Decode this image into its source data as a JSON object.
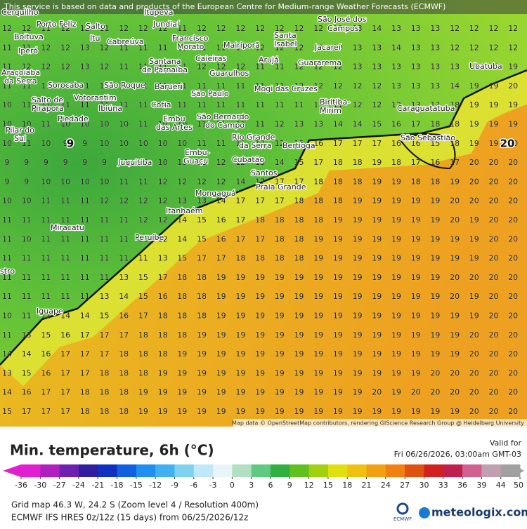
{
  "map": {
    "banner": "This service is based on data and products of the European Centre for Medium-range Weather Forecasts (ECMWF)",
    "attribution": "Map data © OpenStreetMap contributors, rendering GIScience Research Group @ Heidelberg University",
    "contour_labels": [
      "9",
      "20"
    ],
    "places": [
      "Cerquilho",
      "Itupeva",
      "Porto Feliz",
      "Salto",
      "Jundiaí",
      "São José dos",
      "Campos",
      "Boituva",
      "Itu",
      "Cabreúva",
      "Francisco",
      "Morato",
      "Mairiporã",
      "Santa",
      "Isabel",
      "Jacareí",
      "Iperó",
      "Caieiras",
      "Arujá",
      "Guararema",
      "Ubatuba",
      "Araçoiaba",
      "da Serra",
      "Santana",
      "de Parnaíba",
      "Guarulhos",
      "Sorocaba",
      "São Roque",
      "Barueri",
      "Mogi das Cruzes",
      "São Paulo",
      "Salto de",
      "Pirapora",
      "Votorantim",
      "Ibiúna",
      "Cotia",
      "Embu",
      "das Artes",
      "São Bernardo",
      "do Campo",
      "Biritiba-",
      "Mirim",
      "Caraguatatuba",
      "Piedade",
      "Pilar do",
      "Sul",
      "Rio Grande",
      "da Serra",
      "Bertioga",
      "São Sebastião",
      "Embu-",
      "Guaçu",
      "Juquitiba",
      "Cubatão",
      "Santos",
      "Praia Grande",
      "Mongaguá",
      "Itanhaém",
      "Miracatu",
      "Peruíbe",
      "stro",
      "Iguape"
    ],
    "grid": [
      [
        12,
        12,
        11,
        12,
        12,
        11,
        12,
        12,
        12,
        11,
        12,
        12,
        12,
        12,
        12,
        12,
        12,
        12,
        13,
        14,
        13,
        13,
        13,
        12,
        12,
        12,
        12
      ],
      [
        11,
        11,
        12,
        12,
        13,
        12,
        11,
        11,
        11,
        11,
        11,
        11,
        11,
        12,
        12,
        12,
        12,
        12,
        13,
        13,
        14,
        13,
        13,
        12,
        12,
        12,
        12
      ],
      [
        11,
        12,
        12,
        12,
        13,
        12,
        11,
        11,
        11,
        11,
        12,
        12,
        12,
        11,
        11,
        12,
        12,
        12,
        13,
        13,
        13,
        13,
        13,
        13,
        13,
        13,
        19
      ],
      [
        11,
        11,
        11,
        11,
        11,
        11,
        11,
        11,
        11,
        11,
        11,
        11,
        11,
        11,
        11,
        12,
        12,
        12,
        12,
        12,
        13,
        13,
        13,
        14,
        19,
        19,
        20
      ],
      [
        10,
        11,
        11,
        11,
        11,
        11,
        11,
        11,
        10,
        11,
        11,
        11,
        11,
        11,
        11,
        11,
        11,
        11,
        12,
        12,
        12,
        13,
        13,
        18,
        19,
        19,
        19
      ],
      [
        10,
        10,
        11,
        10,
        10,
        10,
        10,
        11,
        10,
        10,
        11,
        11,
        11,
        11,
        12,
        13,
        13,
        14,
        14,
        15,
        16,
        17,
        18,
        18,
        19,
        19,
        19
      ],
      [
        10,
        11,
        10,
        9,
        9,
        10,
        10,
        10,
        10,
        10,
        11,
        11,
        11,
        12,
        12,
        15,
        16,
        17,
        17,
        17,
        16,
        16,
        15,
        18,
        19,
        19,
        20
      ],
      [
        9,
        9,
        9,
        9,
        9,
        9,
        10,
        10,
        10,
        11,
        11,
        12,
        12,
        13,
        14,
        15,
        17,
        18,
        18,
        19,
        18,
        17,
        16,
        17,
        20,
        20,
        20
      ],
      [
        9,
        9,
        10,
        10,
        10,
        10,
        11,
        11,
        12,
        12,
        12,
        12,
        14,
        17,
        17,
        17,
        18,
        18,
        18,
        19,
        19,
        18,
        18,
        19,
        20,
        20,
        20
      ],
      [
        10,
        10,
        11,
        11,
        11,
        12,
        12,
        12,
        12,
        13,
        13,
        14,
        17,
        17,
        17,
        18,
        18,
        18,
        19,
        19,
        19,
        19,
        19,
        20,
        20,
        20,
        20
      ],
      [
        11,
        11,
        11,
        11,
        11,
        11,
        11,
        12,
        12,
        14,
        15,
        16,
        17,
        18,
        18,
        18,
        18,
        19,
        19,
        19,
        19,
        19,
        19,
        20,
        19,
        20,
        20
      ],
      [
        11,
        10,
        11,
        11,
        11,
        11,
        11,
        11,
        12,
        14,
        15,
        16,
        17,
        17,
        18,
        18,
        19,
        19,
        19,
        19,
        19,
        19,
        19,
        19,
        19,
        20,
        20
      ],
      [
        11,
        11,
        11,
        11,
        11,
        11,
        11,
        11,
        13,
        15,
        17,
        17,
        18,
        18,
        18,
        18,
        19,
        19,
        19,
        19,
        19,
        19,
        19,
        19,
        19,
        20,
        20
      ],
      [
        11,
        11,
        11,
        11,
        11,
        11,
        13,
        15,
        17,
        18,
        18,
        19,
        19,
        19,
        19,
        19,
        19,
        19,
        19,
        19,
        19,
        19,
        19,
        20,
        20,
        20,
        20
      ],
      [
        11,
        11,
        11,
        11,
        11,
        13,
        14,
        15,
        16,
        18,
        18,
        19,
        19,
        19,
        19,
        19,
        19,
        19,
        19,
        19,
        19,
        19,
        19,
        20,
        19,
        20,
        20
      ],
      [
        10,
        11,
        11,
        14,
        14,
        15,
        16,
        17,
        18,
        18,
        18,
        19,
        19,
        19,
        19,
        19,
        19,
        19,
        19,
        19,
        19,
        19,
        19,
        19,
        19,
        20,
        20
      ],
      [
        11,
        13,
        15,
        16,
        17,
        17,
        17,
        18,
        18,
        18,
        19,
        19,
        19,
        19,
        19,
        19,
        19,
        19,
        19,
        19,
        19,
        19,
        19,
        19,
        20,
        20,
        20
      ],
      [
        14,
        14,
        16,
        17,
        17,
        17,
        18,
        18,
        18,
        19,
        19,
        19,
        19,
        19,
        19,
        19,
        19,
        19,
        19,
        19,
        19,
        19,
        19,
        19,
        20,
        20,
        20
      ],
      [
        13,
        15,
        16,
        17,
        17,
        18,
        18,
        18,
        19,
        19,
        19,
        19,
        19,
        19,
        19,
        19,
        19,
        19,
        19,
        19,
        19,
        19,
        20,
        20,
        20,
        20,
        20
      ],
      [
        14,
        16,
        17,
        17,
        18,
        18,
        18,
        19,
        19,
        19,
        19,
        19,
        19,
        19,
        19,
        19,
        19,
        19,
        19,
        20,
        19,
        20,
        20,
        20,
        20,
        20,
        20
      ],
      [
        15,
        17,
        17,
        17,
        18,
        18,
        18,
        19,
        19,
        19,
        19,
        19,
        19,
        19,
        19,
        19,
        19,
        19,
        19,
        19,
        19,
        19,
        19,
        19,
        20,
        20,
        20
      ]
    ]
  },
  "legend": {
    "title": "Min. temperature, 6h (°C)",
    "valid_label": "Valid for",
    "valid_time": "Fri 06/26/2026, 03:00am GMT-03",
    "ticks": [
      -36,
      -30,
      -27,
      -24,
      -21,
      -18,
      -15,
      -12,
      -9,
      -6,
      -3,
      0,
      3,
      6,
      9,
      12,
      15,
      18,
      21,
      24,
      27,
      30,
      33,
      36,
      39,
      44,
      50
    ],
    "colors": [
      "#e020d0",
      "#b020c0",
      "#7020b0",
      "#3020a0",
      "#1030c0",
      "#1060e0",
      "#2090f0",
      "#40b0f0",
      "#80d0f0",
      "#c0e8f8",
      "#e8f4f8",
      "#b0e0c0",
      "#60c880",
      "#30b040",
      "#60c020",
      "#a0d010",
      "#e0e010",
      "#f0c010",
      "#f0a010",
      "#f08010",
      "#e05010",
      "#d02020",
      "#c02050",
      "#d06090",
      "#c0a0b0",
      "#a0a0a0"
    ]
  },
  "footer": {
    "grid_info": "Grid map 46.3 W, 24.2 S (Zoom level 4 / Resolution 400m)",
    "model_info": "ECMWF IFS HRES 0z/12z (15 days) from 06/25/2026/12z",
    "ecmwf_logo": "ECMWF",
    "brand": "meteologix.com"
  }
}
